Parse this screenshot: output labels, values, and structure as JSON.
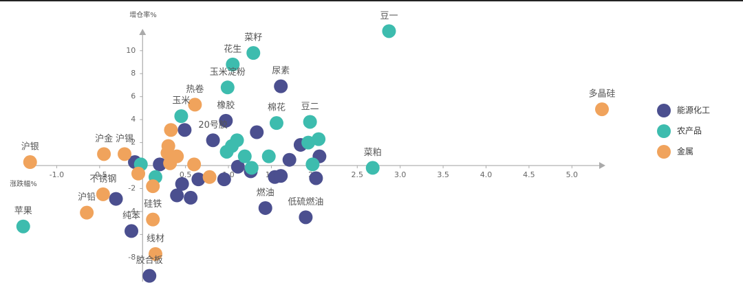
{
  "chart_data": {
    "type": "scatter",
    "x_label": "涨跌幅%",
    "y_label": "增仓率%",
    "xlim": [
      -1.34,
      5.39
    ],
    "ylim": [
      -10.1,
      11.9
    ],
    "xticks": [
      {
        "value": -1,
        "label": "-1.0"
      },
      -0.5,
      0.5,
      {
        "value": 1,
        "label": "1.0"
      },
      1.5,
      {
        "value": 2,
        "label": "2.0"
      },
      2.5,
      {
        "value": 3,
        "label": "3.0"
      },
      3.5,
      {
        "value": 4,
        "label": "4.0"
      },
      4.5,
      {
        "value": 5,
        "label": "5.0"
      }
    ],
    "yticks": [
      -8,
      -6,
      -4,
      -2,
      2,
      4,
      6,
      8,
      10
    ],
    "legend": "right",
    "series": [
      {
        "name": "能源化工",
        "color": "#4b4f8f",
        "labels": [
          "尿素",
          "橡胶",
          "燃油",
          "低硫燃油",
          "纯苯",
          "胶合板",
          "20号胶",
          null,
          null,
          null,
          null,
          null,
          null,
          null,
          null,
          null,
          null,
          null,
          null,
          null,
          null,
          null,
          null,
          null,
          null
        ],
        "x": [
          1.61,
          0.97,
          1.43,
          1.9,
          -0.13,
          0.08,
          0.82,
          0.49,
          1.11,
          1.26,
          1.54,
          1.61,
          2.02,
          1.71,
          1.84,
          2.06,
          0.95,
          0.65,
          0.46,
          0.4,
          0.56,
          -0.31,
          -0.09,
          0.2,
          1.33
        ],
        "y": [
          6.9,
          3.9,
          -3.7,
          -4.5,
          -5.7,
          -9.6,
          2.2,
          3.1,
          -0.1,
          -0.5,
          -1,
          -0.9,
          -1.1,
          0.5,
          1.8,
          0.8,
          -1.2,
          -1.2,
          -1.6,
          -2.6,
          -2.8,
          -2.9,
          0.3,
          0.1,
          2.9
        ]
      },
      {
        "name": "农产品",
        "color": "#3dbcae",
        "labels": [
          "豆一",
          "菜籽",
          "花生",
          "玉米淀粉",
          "棉花",
          "豆二",
          "菜粕",
          "苹果",
          "玉米",
          null,
          null,
          null,
          null,
          null,
          null,
          null,
          null,
          null,
          null,
          null
        ],
        "x": [
          2.87,
          1.29,
          1.05,
          0.99,
          1.56,
          1.95,
          2.68,
          -1.39,
          0.45,
          2.05,
          1.93,
          1.98,
          1.47,
          1.27,
          1.19,
          1.1,
          1.04,
          0.98,
          0.15,
          -0.02
        ],
        "y": [
          11.7,
          9.8,
          8.8,
          6.8,
          3.7,
          3.8,
          -0.2,
          -5.3,
          4.3,
          2.3,
          2,
          0.1,
          0.8,
          -0.2,
          0.8,
          2.2,
          1.7,
          1.2,
          -1,
          0.1
        ]
      },
      {
        "name": "金属",
        "color": "#f0a35c",
        "labels": [
          "多晶硅",
          "沪银",
          "沪金",
          "沪锡",
          "热卷",
          "沪铅",
          "不锈钢",
          "硅铁",
          "线材",
          null,
          null,
          null,
          null,
          null,
          null,
          null,
          null,
          null
        ],
        "x": [
          5.35,
          -1.31,
          -0.45,
          -0.21,
          0.61,
          -0.65,
          -0.46,
          0.12,
          0.15,
          0.33,
          0.3,
          0.32,
          0.12,
          -0.05,
          0.29,
          0.4,
          0.78,
          0.6
        ],
        "y": [
          4.9,
          0.3,
          1,
          1,
          5.3,
          -4.1,
          -2.5,
          -4.7,
          -7.7,
          3.1,
          1.7,
          0.2,
          -1.8,
          -0.7,
          1.1,
          0.8,
          -1,
          0.1
        ]
      }
    ]
  }
}
